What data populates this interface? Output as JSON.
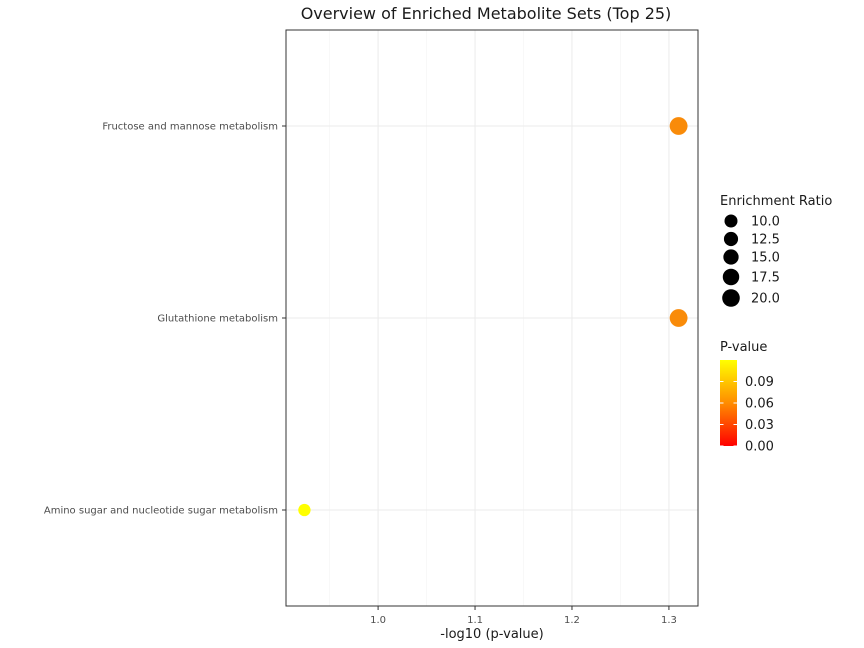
{
  "chart_data": {
    "type": "scatter",
    "title": "Overview of Enriched Metabolite Sets (Top 25)",
    "xlabel": "-log10 (p-value)",
    "ylabel": "",
    "xlim": [
      0.905,
      1.33
    ],
    "x_ticks": [
      1.0,
      1.1,
      1.2,
      1.3
    ],
    "x_tick_labels": [
      "1.0",
      "1.1",
      "1.2",
      "1.3"
    ],
    "x_minor_ticks": [
      0.95,
      1.05,
      1.15,
      1.25
    ],
    "categories": [
      "Fructose and mannose metabolism",
      "Glutathione metabolism",
      "Amino sugar and nucleotide sugar metabolism"
    ],
    "points": [
      {
        "category": "Fructose and mannose metabolism",
        "x": 1.31,
        "enrichment_ratio": 20.5,
        "p_value": 0.049,
        "color": "#f98b09"
      },
      {
        "category": "Glutathione metabolism",
        "x": 1.31,
        "enrichment_ratio": 20.5,
        "p_value": 0.049,
        "color": "#f98b09"
      },
      {
        "category": "Amino sugar and nucleotide sugar metabolism",
        "x": 0.924,
        "enrichment_ratio": 8.6,
        "p_value": 0.119,
        "color": "#ffff00"
      }
    ],
    "grid": true,
    "legend_position": "right",
    "size_legend": {
      "title": "Enrichment Ratio",
      "breaks": [
        10.0,
        12.5,
        15.0,
        17.5,
        20.0
      ],
      "labels": [
        "10.0",
        "12.5",
        "15.0",
        "17.5",
        "20.0"
      ]
    },
    "color_legend": {
      "title": "P-value",
      "range": [
        0.0,
        0.12
      ],
      "breaks": [
        0.09,
        0.06,
        0.03,
        0.0
      ],
      "labels": [
        "0.09",
        "0.06",
        "0.03",
        "0.00"
      ],
      "low_color": "#ff0000",
      "high_color": "#ffff00"
    }
  }
}
